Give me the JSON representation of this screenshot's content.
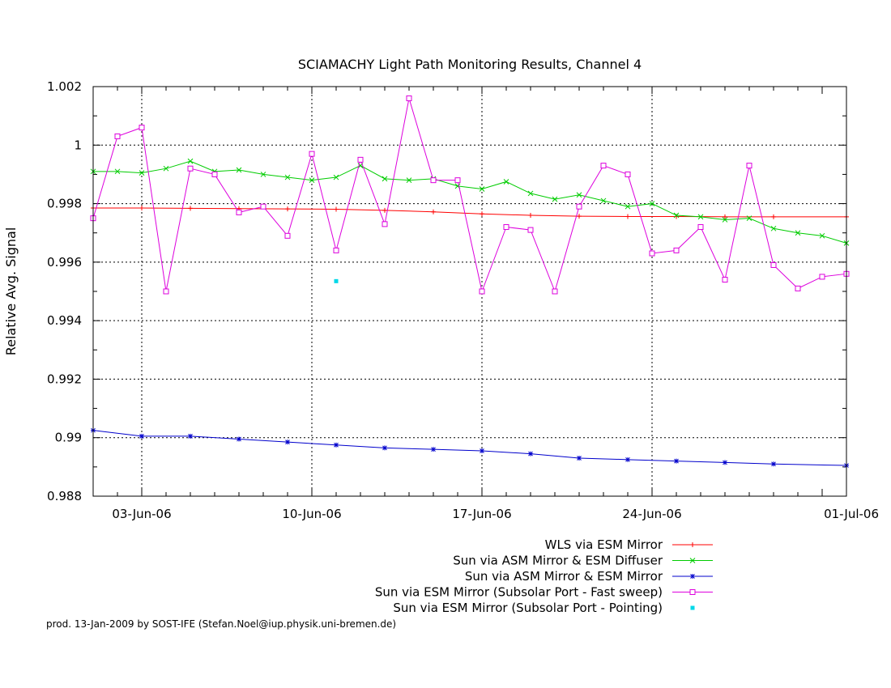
{
  "chart_data": {
    "type": "line",
    "title": "SCIAMACHY Light Path Monitoring Results, Channel 4",
    "xlabel": "",
    "ylabel": "Relative Avg. Signal",
    "x_ticks": [
      "03-Jun-06",
      "10-Jun-06",
      "17-Jun-06",
      "24-Jun-06",
      "01-Jul-06"
    ],
    "xlim": [
      "2006-06-01",
      "2006-07-02"
    ],
    "ylim": [
      0.988,
      1.002
    ],
    "y_ticks": [
      "0.988",
      "0.99",
      "0.992",
      "0.994",
      "0.996",
      "0.998",
      "1",
      "1.002"
    ],
    "y_tick_values": [
      0.988,
      0.99,
      0.992,
      0.994,
      0.996,
      0.998,
      1.0,
      1.002
    ],
    "grid": true,
    "legend_position": "bottom-right",
    "series": [
      {
        "name": "WLS via ESM Mirror",
        "color": "#ff0000",
        "marker": "plus",
        "x": [
          "2006-06-01",
          "2006-06-03",
          "2006-06-05",
          "2006-06-07",
          "2006-06-09",
          "2006-06-11",
          "2006-06-13",
          "2006-06-15",
          "2006-06-17",
          "2006-06-19",
          "2006-06-21",
          "2006-06-23",
          "2006-06-25",
          "2006-06-27",
          "2006-06-29",
          "2006-07-02"
        ],
        "values": [
          0.99785,
          0.99785,
          0.99784,
          0.99783,
          0.99782,
          0.99781,
          0.99777,
          0.99772,
          0.99765,
          0.9976,
          0.99757,
          0.99756,
          0.99756,
          0.99755,
          0.99755,
          0.99755
        ]
      },
      {
        "name": "Sun via ASM Mirror & ESM Diffuser",
        "color": "#00cc00",
        "marker": "cross",
        "x": [
          "2006-06-01",
          "2006-06-02",
          "2006-06-03",
          "2006-06-04",
          "2006-06-05",
          "2006-06-06",
          "2006-06-07",
          "2006-06-08",
          "2006-06-09",
          "2006-06-10",
          "2006-06-11",
          "2006-06-12",
          "2006-06-13",
          "2006-06-14",
          "2006-06-15",
          "2006-06-16",
          "2006-06-17",
          "2006-06-18",
          "2006-06-19",
          "2006-06-20",
          "2006-06-21",
          "2006-06-22",
          "2006-06-23",
          "2006-06-24",
          "2006-06-25",
          "2006-06-26",
          "2006-06-27",
          "2006-06-28",
          "2006-06-29",
          "2006-06-30",
          "2006-07-01",
          "2006-07-02"
        ],
        "values": [
          0.9991,
          0.9991,
          0.99905,
          0.9992,
          0.99945,
          0.9991,
          0.99915,
          0.999,
          0.9989,
          0.9988,
          0.9989,
          0.9993,
          0.99885,
          0.9988,
          0.99885,
          0.9986,
          0.9985,
          0.99875,
          0.99835,
          0.99815,
          0.9983,
          0.9981,
          0.9979,
          0.998,
          0.9976,
          0.99755,
          0.99745,
          0.9975,
          0.99715,
          0.997,
          0.9969,
          0.99665
        ]
      },
      {
        "name": "Sun via ASM Mirror & ESM Mirror",
        "color": "#0000cc",
        "marker": "star",
        "x": [
          "2006-06-01",
          "2006-06-03",
          "2006-06-05",
          "2006-06-07",
          "2006-06-09",
          "2006-06-11",
          "2006-06-13",
          "2006-06-15",
          "2006-06-17",
          "2006-06-19",
          "2006-06-21",
          "2006-06-23",
          "2006-06-25",
          "2006-06-27",
          "2006-06-29",
          "2006-07-02"
        ],
        "values": [
          0.99025,
          0.99005,
          0.99005,
          0.98995,
          0.98985,
          0.98975,
          0.98965,
          0.9896,
          0.98955,
          0.98945,
          0.9893,
          0.98925,
          0.9892,
          0.98915,
          0.9891,
          0.98905
        ]
      },
      {
        "name": "Sun via ESM Mirror (Subsolar Port - Fast sweep)",
        "color": "#dd00dd",
        "marker": "square",
        "x": [
          "2006-06-01",
          "2006-06-02",
          "2006-06-03",
          "2006-06-04",
          "2006-06-05",
          "2006-06-06",
          "2006-06-07",
          "2006-06-08",
          "2006-06-09",
          "2006-06-10",
          "2006-06-11",
          "2006-06-12",
          "2006-06-13",
          "2006-06-14",
          "2006-06-15",
          "2006-06-16",
          "2006-06-17",
          "2006-06-18",
          "2006-06-19",
          "2006-06-20",
          "2006-06-21",
          "2006-06-22",
          "2006-06-23",
          "2006-06-24",
          "2006-06-25",
          "2006-06-26",
          "2006-06-27",
          "2006-06-28",
          "2006-06-29",
          "2006-06-30",
          "2006-07-01",
          "2006-07-02"
        ],
        "values": [
          0.9975,
          1.0003,
          1.0006,
          0.995,
          0.9992,
          0.999,
          0.9977,
          0.9979,
          0.9969,
          0.9997,
          0.9964,
          0.9995,
          0.9973,
          1.0016,
          0.9988,
          0.9988,
          0.995,
          0.9972,
          0.9971,
          0.995,
          0.9979,
          0.9993,
          0.999,
          0.9963,
          0.9964,
          0.9972,
          0.9954,
          0.9993,
          0.9959,
          0.9951,
          0.9955,
          0.9956
        ]
      },
      {
        "name": "Sun via ESM Mirror (Subsolar Port - Pointing)",
        "color": "#00d8e8",
        "marker": "dot",
        "x": [
          "2006-06-11"
        ],
        "values": [
          0.99535
        ]
      }
    ]
  },
  "footer": {
    "credit": "prod. 13-Jan-2009 by SOST-IFE (Stefan.Noel@iup.physik.uni-bremen.de)"
  }
}
